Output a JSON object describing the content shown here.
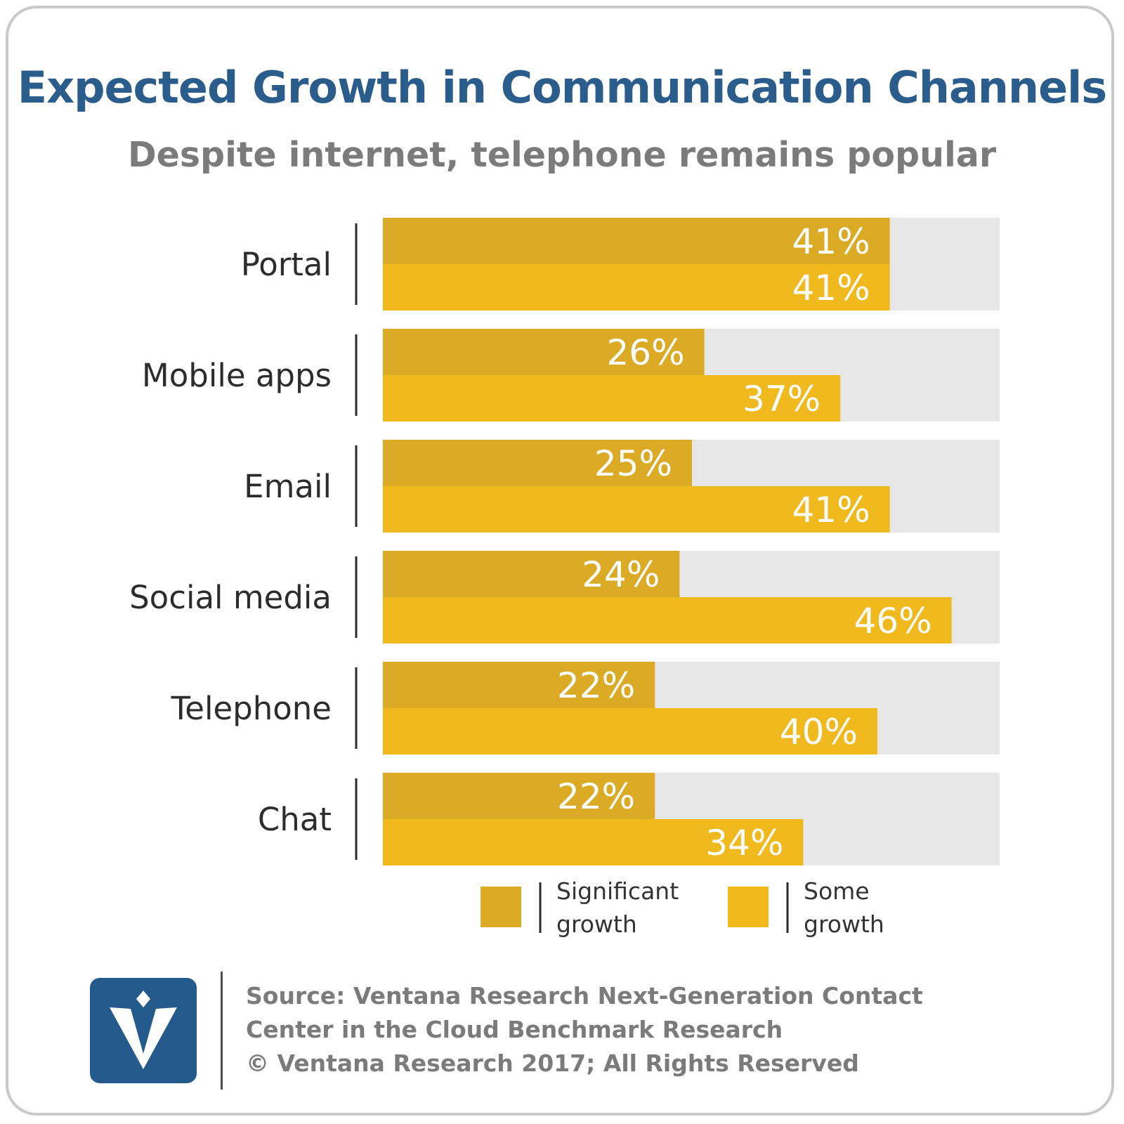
{
  "title": "Expected Growth in Communication Channels",
  "subtitle": "Despite internet, telephone remains popular",
  "chart_data": {
    "type": "bar",
    "orientation": "horizontal",
    "categories": [
      "Portal",
      "Mobile apps",
      "Email",
      "Social media",
      "Telephone",
      "Chat"
    ],
    "series": [
      {
        "name": "Significant growth",
        "values": [
          41,
          26,
          25,
          24,
          22,
          22
        ],
        "color": "#dbab26"
      },
      {
        "name": "Some growth",
        "values": [
          41,
          37,
          41,
          46,
          40,
          34
        ],
        "color": "#f0b91d"
      }
    ],
    "value_suffix": "%",
    "xlim": [
      0,
      50
    ],
    "track_color": "#e6e7e6",
    "grid": false,
    "legend_position": "bottom",
    "legend": [
      {
        "line1": "Significant",
        "line2": "growth"
      },
      {
        "line1": "Some",
        "line2": "growth"
      }
    ]
  },
  "footer": {
    "source_line1": "Source: Ventana Research Next-Generation Contact",
    "source_line2": "Center in the Cloud Benchmark Research",
    "copyright": "© Ventana Research 2017; All Rights Reserved"
  },
  "colors": {
    "title": "#2b5d8c",
    "subtitle": "#7b7b7b",
    "logo_bg": "#245b8c"
  }
}
